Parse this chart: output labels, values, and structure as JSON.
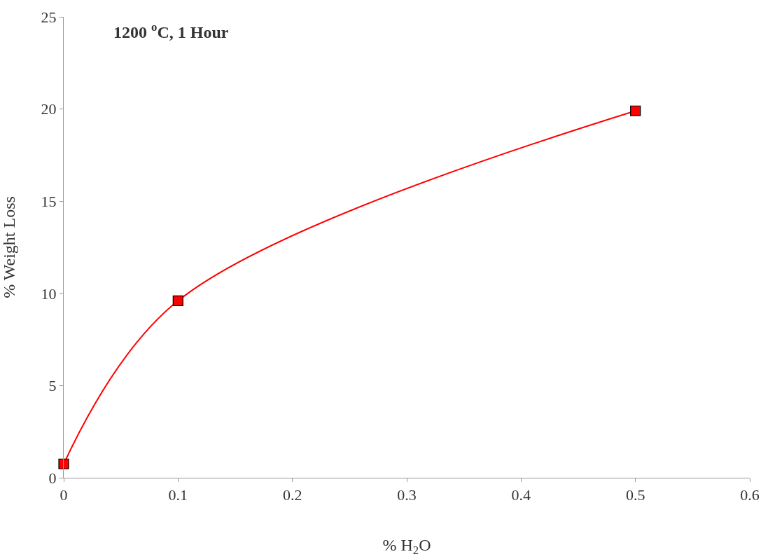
{
  "chart_data": {
    "type": "line",
    "xlabel": "% H$_{2}$O",
    "ylabel": "% Weight Loss",
    "annotations": [
      "1200 $^{o}$C, 1 Hour"
    ],
    "x": [
      0,
      0.1,
      0.5
    ],
    "series": [
      {
        "color": "#ff0000",
        "values": [
          0.75,
          9.6,
          19.9
        ]
      }
    ],
    "xlim": [
      0,
      0.6
    ],
    "xticks": [
      0,
      0.1,
      0.2,
      0.3,
      0.4,
      0.5,
      0.6
    ],
    "ylim": [
      0,
      25
    ],
    "yticks": [
      0,
      5,
      10,
      15,
      20,
      25
    ],
    "marker": "square",
    "line_style": "solid"
  }
}
